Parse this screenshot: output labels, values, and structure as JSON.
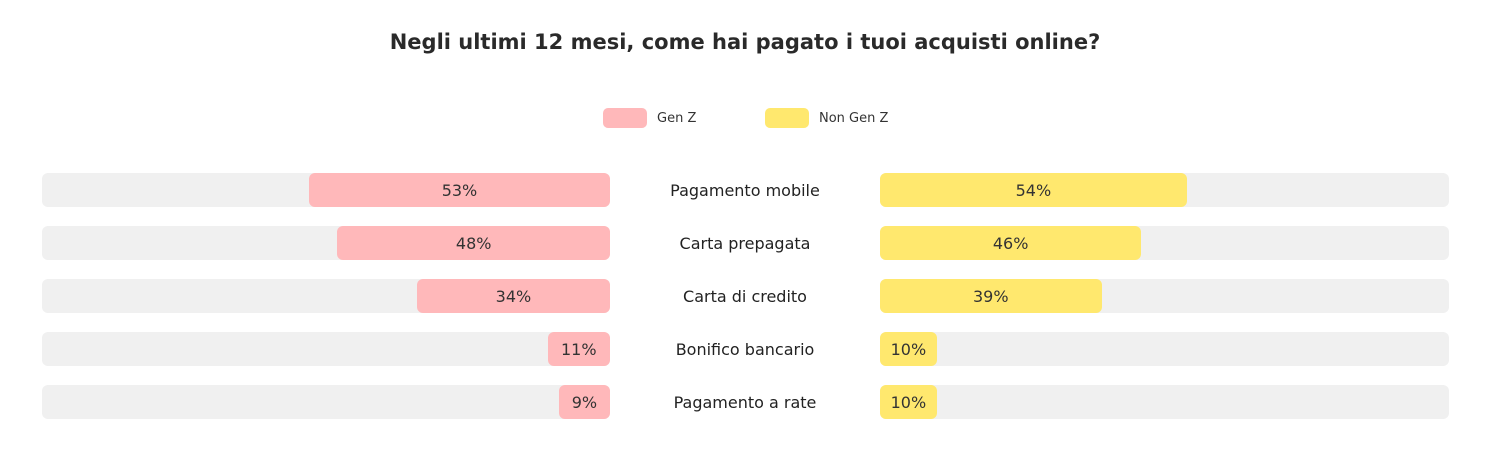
{
  "chart_data": {
    "type": "bar",
    "title": "Negli ultimi 12 mesi, come hai pagato i tuoi acquisti online?",
    "categories": [
      "Pagamento mobile",
      "Carta prepagata",
      "Carta di credito",
      "Bonifico bancario",
      "Pagamento a rate"
    ],
    "series": [
      {
        "name": "Gen Z",
        "values": [
          53,
          48,
          34,
          11,
          9
        ],
        "labels": [
          "53%",
          "48%",
          "34%",
          "11%",
          "9%"
        ],
        "color": "#ffb8ba"
      },
      {
        "name": "Non Gen Z",
        "values": [
          54,
          46,
          39,
          10,
          10
        ],
        "labels": [
          "54%",
          "46%",
          "39%",
          "10%",
          "10%"
        ],
        "color": "#ffe86e"
      }
    ],
    "ylim": [
      0,
      100
    ],
    "legend": "top-center",
    "track_color": "#f0f0f0"
  }
}
